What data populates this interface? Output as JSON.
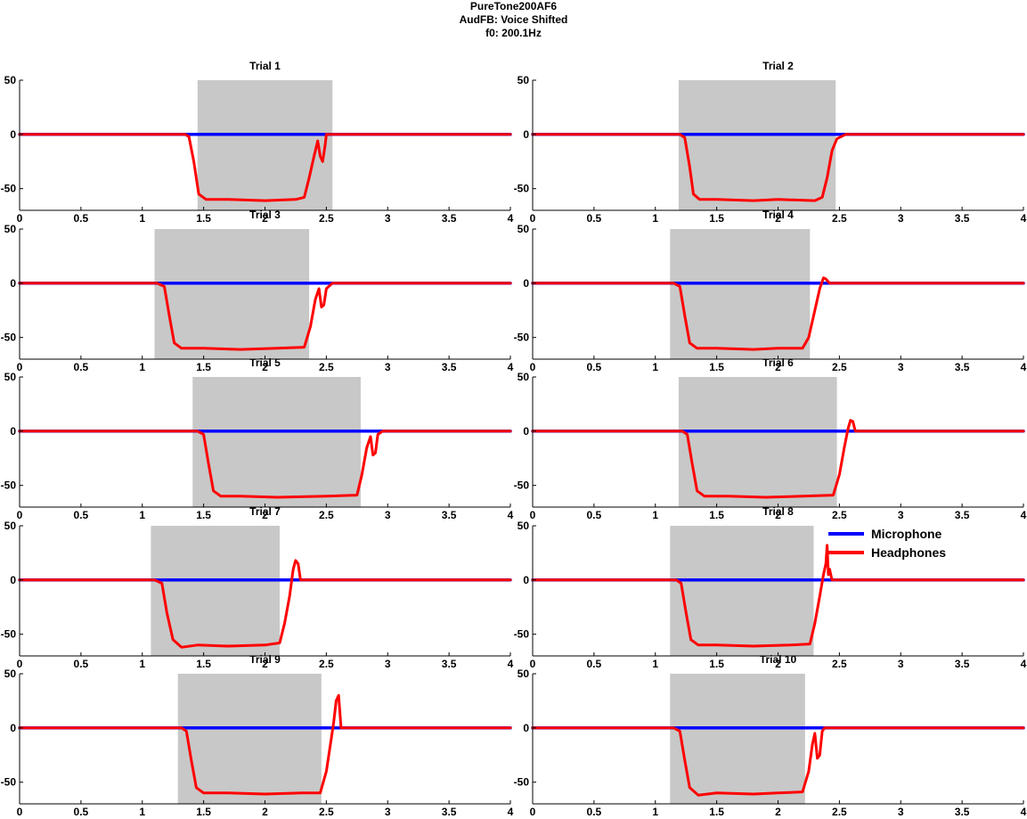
{
  "figure": {
    "title_lines": [
      "PureTone200AF6",
      "AudFB: Voice Shifted",
      "f0: 200.1Hz"
    ]
  },
  "legend": {
    "entries": [
      {
        "label": "Microphone",
        "color": "#0000ff"
      },
      {
        "label": "Headphones",
        "color": "#ff0000"
      }
    ]
  },
  "colors": {
    "microphone": "#0000ff",
    "headphones": "#ff0000",
    "shade": "#c8c8c8",
    "axis": "#000000"
  },
  "chart_data": [
    {
      "type": "line",
      "title": "Trial 1",
      "xlim": [
        0,
        4
      ],
      "ylim": [
        -70,
        50
      ],
      "xticks": [
        0,
        0.5,
        1,
        1.5,
        2,
        2.5,
        3,
        3.5,
        4
      ],
      "xtick_labels": [
        "0",
        "0.5",
        "1",
        "1.5",
        "2",
        "2.5",
        "3",
        "3.5",
        "4"
      ],
      "yticks": [
        50,
        0,
        -50
      ],
      "ytick_labels": [
        "50",
        "0",
        "-50"
      ],
      "shaded_interval": [
        1.45,
        2.55
      ],
      "series": [
        {
          "name": "Microphone",
          "color": "#0000ff",
          "x": [
            0,
            4
          ],
          "y": [
            0,
            0
          ]
        },
        {
          "name": "Headphones",
          "color": "#ff0000",
          "x": [
            0,
            1.35,
            1.38,
            1.42,
            1.46,
            1.52,
            1.7,
            2.0,
            2.25,
            2.32,
            2.36,
            2.4,
            2.43,
            2.45,
            2.47,
            2.49,
            2.5,
            2.52,
            2.55,
            3.0,
            3.5,
            4.0
          ],
          "y": [
            0,
            0,
            -2,
            -25,
            -55,
            -60,
            -60,
            -61,
            -60,
            -58,
            -40,
            -20,
            -6,
            -20,
            -25,
            -10,
            0,
            0,
            0,
            0,
            0,
            0
          ]
        }
      ]
    },
    {
      "type": "line",
      "title": "Trial 2",
      "xlim": [
        0,
        4
      ],
      "ylim": [
        -70,
        50
      ],
      "xticks": [
        0,
        0.5,
        1,
        1.5,
        2,
        2.5,
        3,
        3.5,
        4
      ],
      "xtick_labels": [
        "0",
        "0.5",
        "1",
        "1.5",
        "2",
        "2.5",
        "3",
        "3.5",
        "4"
      ],
      "yticks": [
        50,
        0,
        -50
      ],
      "ytick_labels": [
        "50",
        "0",
        "-50"
      ],
      "shaded_interval": [
        1.19,
        2.47
      ],
      "series": [
        {
          "name": "Microphone",
          "color": "#0000ff",
          "x": [
            0,
            4
          ],
          "y": [
            0,
            0
          ]
        },
        {
          "name": "Headphones",
          "color": "#ff0000",
          "x": [
            0,
            1.2,
            1.24,
            1.28,
            1.31,
            1.36,
            1.5,
            1.8,
            2.0,
            2.3,
            2.36,
            2.4,
            2.44,
            2.48,
            2.55,
            3.0,
            3.5,
            4.0
          ],
          "y": [
            0,
            0,
            -3,
            -30,
            -55,
            -60,
            -60,
            -61,
            -60,
            -61,
            -58,
            -40,
            -15,
            -4,
            0,
            0,
            0,
            0
          ]
        }
      ]
    },
    {
      "type": "line",
      "title": "Trial 3",
      "xlim": [
        0,
        4
      ],
      "ylim": [
        -70,
        50
      ],
      "xticks": [
        0,
        0.5,
        1,
        1.5,
        2,
        2.5,
        3,
        3.5,
        4
      ],
      "xtick_labels": [
        "0",
        "0.5",
        "1",
        "1.5",
        "2",
        "2.5",
        "3",
        "3.5",
        "4"
      ],
      "yticks": [
        50,
        0,
        -50
      ],
      "ytick_labels": [
        "50",
        "0",
        "-50"
      ],
      "shaded_interval": [
        1.1,
        2.36
      ],
      "series": [
        {
          "name": "Microphone",
          "color": "#0000ff",
          "x": [
            0,
            4
          ],
          "y": [
            0,
            0
          ]
        },
        {
          "name": "Headphones",
          "color": "#ff0000",
          "x": [
            0,
            1.12,
            1.18,
            1.22,
            1.26,
            1.32,
            1.5,
            1.8,
            2.1,
            2.32,
            2.37,
            2.41,
            2.44,
            2.46,
            2.48,
            2.5,
            2.55,
            3.0,
            3.5,
            4.0
          ],
          "y": [
            0,
            0,
            -3,
            -30,
            -55,
            -60,
            -60,
            -61,
            -60,
            -59,
            -40,
            -15,
            -5,
            -22,
            -20,
            -5,
            0,
            0,
            0,
            0
          ]
        }
      ]
    },
    {
      "type": "line",
      "title": "Trial 4",
      "xlim": [
        0,
        4
      ],
      "ylim": [
        -70,
        50
      ],
      "xticks": [
        0,
        0.5,
        1,
        1.5,
        2,
        2.5,
        3,
        3.5,
        4
      ],
      "xtick_labels": [
        "0",
        "0.5",
        "1",
        "1.5",
        "2",
        "2.5",
        "3",
        "3.5",
        "4"
      ],
      "yticks": [
        50,
        0,
        -50
      ],
      "ytick_labels": [
        "50",
        "0",
        "-50"
      ],
      "shaded_interval": [
        1.12,
        2.26
      ],
      "series": [
        {
          "name": "Microphone",
          "color": "#0000ff",
          "x": [
            0,
            4
          ],
          "y": [
            0,
            0
          ]
        },
        {
          "name": "Headphones",
          "color": "#ff0000",
          "x": [
            0,
            1.15,
            1.2,
            1.24,
            1.28,
            1.34,
            1.5,
            1.8,
            2.0,
            2.2,
            2.25,
            2.3,
            2.34,
            2.37,
            2.39,
            2.42,
            2.45,
            3.0,
            3.5,
            4.0
          ],
          "y": [
            0,
            0,
            -3,
            -30,
            -55,
            -60,
            -60,
            -61,
            -60,
            -60,
            -50,
            -25,
            -5,
            5,
            4,
            0,
            0,
            0,
            0,
            0
          ]
        }
      ]
    },
    {
      "type": "line",
      "title": "Trial 5",
      "xlim": [
        0,
        4
      ],
      "ylim": [
        -70,
        50
      ],
      "xticks": [
        0,
        0.5,
        1,
        1.5,
        2,
        2.5,
        3,
        3.5,
        4
      ],
      "xtick_labels": [
        "0",
        "0.5",
        "1",
        "1.5",
        "2",
        "2.5",
        "3",
        "3.5",
        "4"
      ],
      "yticks": [
        50,
        0,
        -50
      ],
      "ytick_labels": [
        "50",
        "0",
        "-50"
      ],
      "shaded_interval": [
        1.41,
        2.78
      ],
      "series": [
        {
          "name": "Microphone",
          "color": "#0000ff",
          "x": [
            0,
            4
          ],
          "y": [
            0,
            0
          ]
        },
        {
          "name": "Headphones",
          "color": "#ff0000",
          "x": [
            0,
            1.45,
            1.5,
            1.54,
            1.58,
            1.64,
            1.8,
            2.1,
            2.5,
            2.75,
            2.79,
            2.83,
            2.86,
            2.88,
            2.9,
            2.92,
            2.96,
            3.5,
            4.0
          ],
          "y": [
            0,
            0,
            -3,
            -30,
            -55,
            -60,
            -60,
            -61,
            -60,
            -59,
            -40,
            -15,
            -5,
            -22,
            -20,
            -3,
            0,
            0,
            0
          ]
        }
      ]
    },
    {
      "type": "line",
      "title": "Trial 6",
      "xlim": [
        0,
        4
      ],
      "ylim": [
        -70,
        50
      ],
      "xticks": [
        0,
        0.5,
        1,
        1.5,
        2,
        2.5,
        3,
        3.5,
        4
      ],
      "xtick_labels": [
        "0",
        "0.5",
        "1",
        "1.5",
        "2",
        "2.5",
        "3",
        "3.5",
        "4"
      ],
      "yticks": [
        50,
        0,
        -50
      ],
      "ytick_labels": [
        "50",
        "0",
        "-50"
      ],
      "shaded_interval": [
        1.19,
        2.48
      ],
      "series": [
        {
          "name": "Microphone",
          "color": "#0000ff",
          "x": [
            0,
            4
          ],
          "y": [
            0,
            0
          ]
        },
        {
          "name": "Headphones",
          "color": "#ff0000",
          "x": [
            0,
            1.22,
            1.26,
            1.3,
            1.34,
            1.4,
            1.6,
            1.9,
            2.2,
            2.45,
            2.5,
            2.54,
            2.57,
            2.59,
            2.61,
            2.63,
            2.67,
            3.0,
            3.5,
            4.0
          ],
          "y": [
            0,
            0,
            -3,
            -30,
            -55,
            -60,
            -60,
            -61,
            -60,
            -59,
            -40,
            -15,
            2,
            10,
            9,
            0,
            0,
            0,
            0,
            0
          ]
        }
      ]
    },
    {
      "type": "line",
      "title": "Trial 7",
      "xlim": [
        0,
        4
      ],
      "ylim": [
        -70,
        50
      ],
      "xticks": [
        0,
        0.5,
        1,
        1.5,
        2,
        2.5,
        3,
        3.5,
        4
      ],
      "xtick_labels": [
        "0",
        "0.5",
        "1",
        "1.5",
        "2",
        "2.5",
        "3",
        "3.5",
        "4"
      ],
      "yticks": [
        50,
        0,
        -50
      ],
      "ytick_labels": [
        "50",
        "0",
        "-50"
      ],
      "shaded_interval": [
        1.07,
        2.12
      ],
      "series": [
        {
          "name": "Microphone",
          "color": "#0000ff",
          "x": [
            0,
            4
          ],
          "y": [
            0,
            0
          ]
        },
        {
          "name": "Headphones",
          "color": "#ff0000",
          "x": [
            0,
            1.1,
            1.16,
            1.2,
            1.25,
            1.32,
            1.45,
            1.7,
            2.0,
            2.12,
            2.16,
            2.2,
            2.23,
            2.25,
            2.27,
            2.29,
            2.32,
            3.0,
            3.5,
            4.0
          ],
          "y": [
            0,
            0,
            -3,
            -30,
            -55,
            -62,
            -60,
            -61,
            -60,
            -58,
            -40,
            -15,
            10,
            18,
            15,
            0,
            0,
            0,
            0,
            0
          ]
        }
      ]
    },
    {
      "type": "line",
      "title": "Trial 8",
      "xlim": [
        0,
        4
      ],
      "ylim": [
        -70,
        50
      ],
      "xticks": [
        0,
        0.5,
        1,
        1.5,
        2,
        2.5,
        3,
        3.5,
        4
      ],
      "xtick_labels": [
        "0",
        "0.5",
        "1",
        "1.5",
        "2",
        "2.5",
        "3",
        "3.5",
        "4"
      ],
      "yticks": [
        50,
        0,
        -50
      ],
      "ytick_labels": [
        "50",
        "0",
        "-50"
      ],
      "shaded_interval": [
        1.12,
        2.29
      ],
      "series": [
        {
          "name": "Microphone",
          "color": "#0000ff",
          "x": [
            0,
            4
          ],
          "y": [
            0,
            0
          ]
        },
        {
          "name": "Headphones",
          "color": "#ff0000",
          "x": [
            0,
            1.17,
            1.21,
            1.25,
            1.29,
            1.35,
            1.5,
            1.8,
            2.1,
            2.26,
            2.3,
            2.34,
            2.37,
            2.39,
            2.4,
            2.41,
            2.42,
            2.43,
            2.44,
            2.47,
            3.0,
            3.5,
            4.0
          ],
          "y": [
            0,
            0,
            -3,
            -30,
            -55,
            -60,
            -60,
            -61,
            -60,
            -59,
            -40,
            -15,
            5,
            15,
            32,
            5,
            10,
            5,
            0,
            0,
            0,
            0,
            0
          ]
        }
      ]
    },
    {
      "type": "line",
      "title": "Trial 9",
      "xlim": [
        0,
        4
      ],
      "ylim": [
        -70,
        50
      ],
      "xticks": [
        0,
        0.5,
        1,
        1.5,
        2,
        2.5,
        3,
        3.5,
        4
      ],
      "xtick_labels": [
        "0",
        "0.5",
        "1",
        "1.5",
        "2",
        "2.5",
        "3",
        "3.5",
        "4"
      ],
      "yticks": [
        50,
        0,
        -50
      ],
      "ytick_labels": [
        "50",
        "0",
        "-50"
      ],
      "shaded_interval": [
        1.29,
        2.46
      ],
      "series": [
        {
          "name": "Microphone",
          "color": "#0000ff",
          "x": [
            0,
            4
          ],
          "y": [
            0,
            0
          ]
        },
        {
          "name": "Headphones",
          "color": "#ff0000",
          "x": [
            0,
            1.32,
            1.36,
            1.4,
            1.44,
            1.5,
            1.7,
            2.0,
            2.3,
            2.45,
            2.5,
            2.54,
            2.56,
            2.58,
            2.6,
            2.62,
            2.65,
            3.0,
            3.5,
            4.0
          ],
          "y": [
            0,
            0,
            -3,
            -30,
            -55,
            -60,
            -60,
            -61,
            -60,
            -60,
            -40,
            -10,
            5,
            25,
            30,
            0,
            0,
            0,
            0,
            0
          ]
        }
      ]
    },
    {
      "type": "line",
      "title": "Trial 10",
      "xlim": [
        0,
        4
      ],
      "ylim": [
        -70,
        50
      ],
      "xticks": [
        0,
        0.5,
        1,
        1.5,
        2,
        2.5,
        3,
        3.5,
        4
      ],
      "xtick_labels": [
        "0",
        "0.5",
        "1",
        "1.5",
        "2",
        "2.5",
        "3",
        "3.5",
        "4"
      ],
      "yticks": [
        50,
        0,
        -50
      ],
      "ytick_labels": [
        "50",
        "0",
        "-50"
      ],
      "shaded_interval": [
        1.12,
        2.22
      ],
      "series": [
        {
          "name": "Microphone",
          "color": "#0000ff",
          "x": [
            0,
            4
          ],
          "y": [
            0,
            0
          ]
        },
        {
          "name": "Headphones",
          "color": "#ff0000",
          "x": [
            0,
            1.15,
            1.2,
            1.24,
            1.28,
            1.35,
            1.5,
            1.8,
            2.0,
            2.2,
            2.25,
            2.28,
            2.3,
            2.32,
            2.34,
            2.36,
            2.38,
            2.42,
            3.0,
            3.5,
            4.0
          ],
          "y": [
            0,
            0,
            -3,
            -30,
            -55,
            -62,
            -60,
            -61,
            -60,
            -59,
            -40,
            -15,
            -5,
            -28,
            -25,
            -3,
            0,
            0,
            0,
            0,
            0
          ]
        }
      ]
    }
  ]
}
